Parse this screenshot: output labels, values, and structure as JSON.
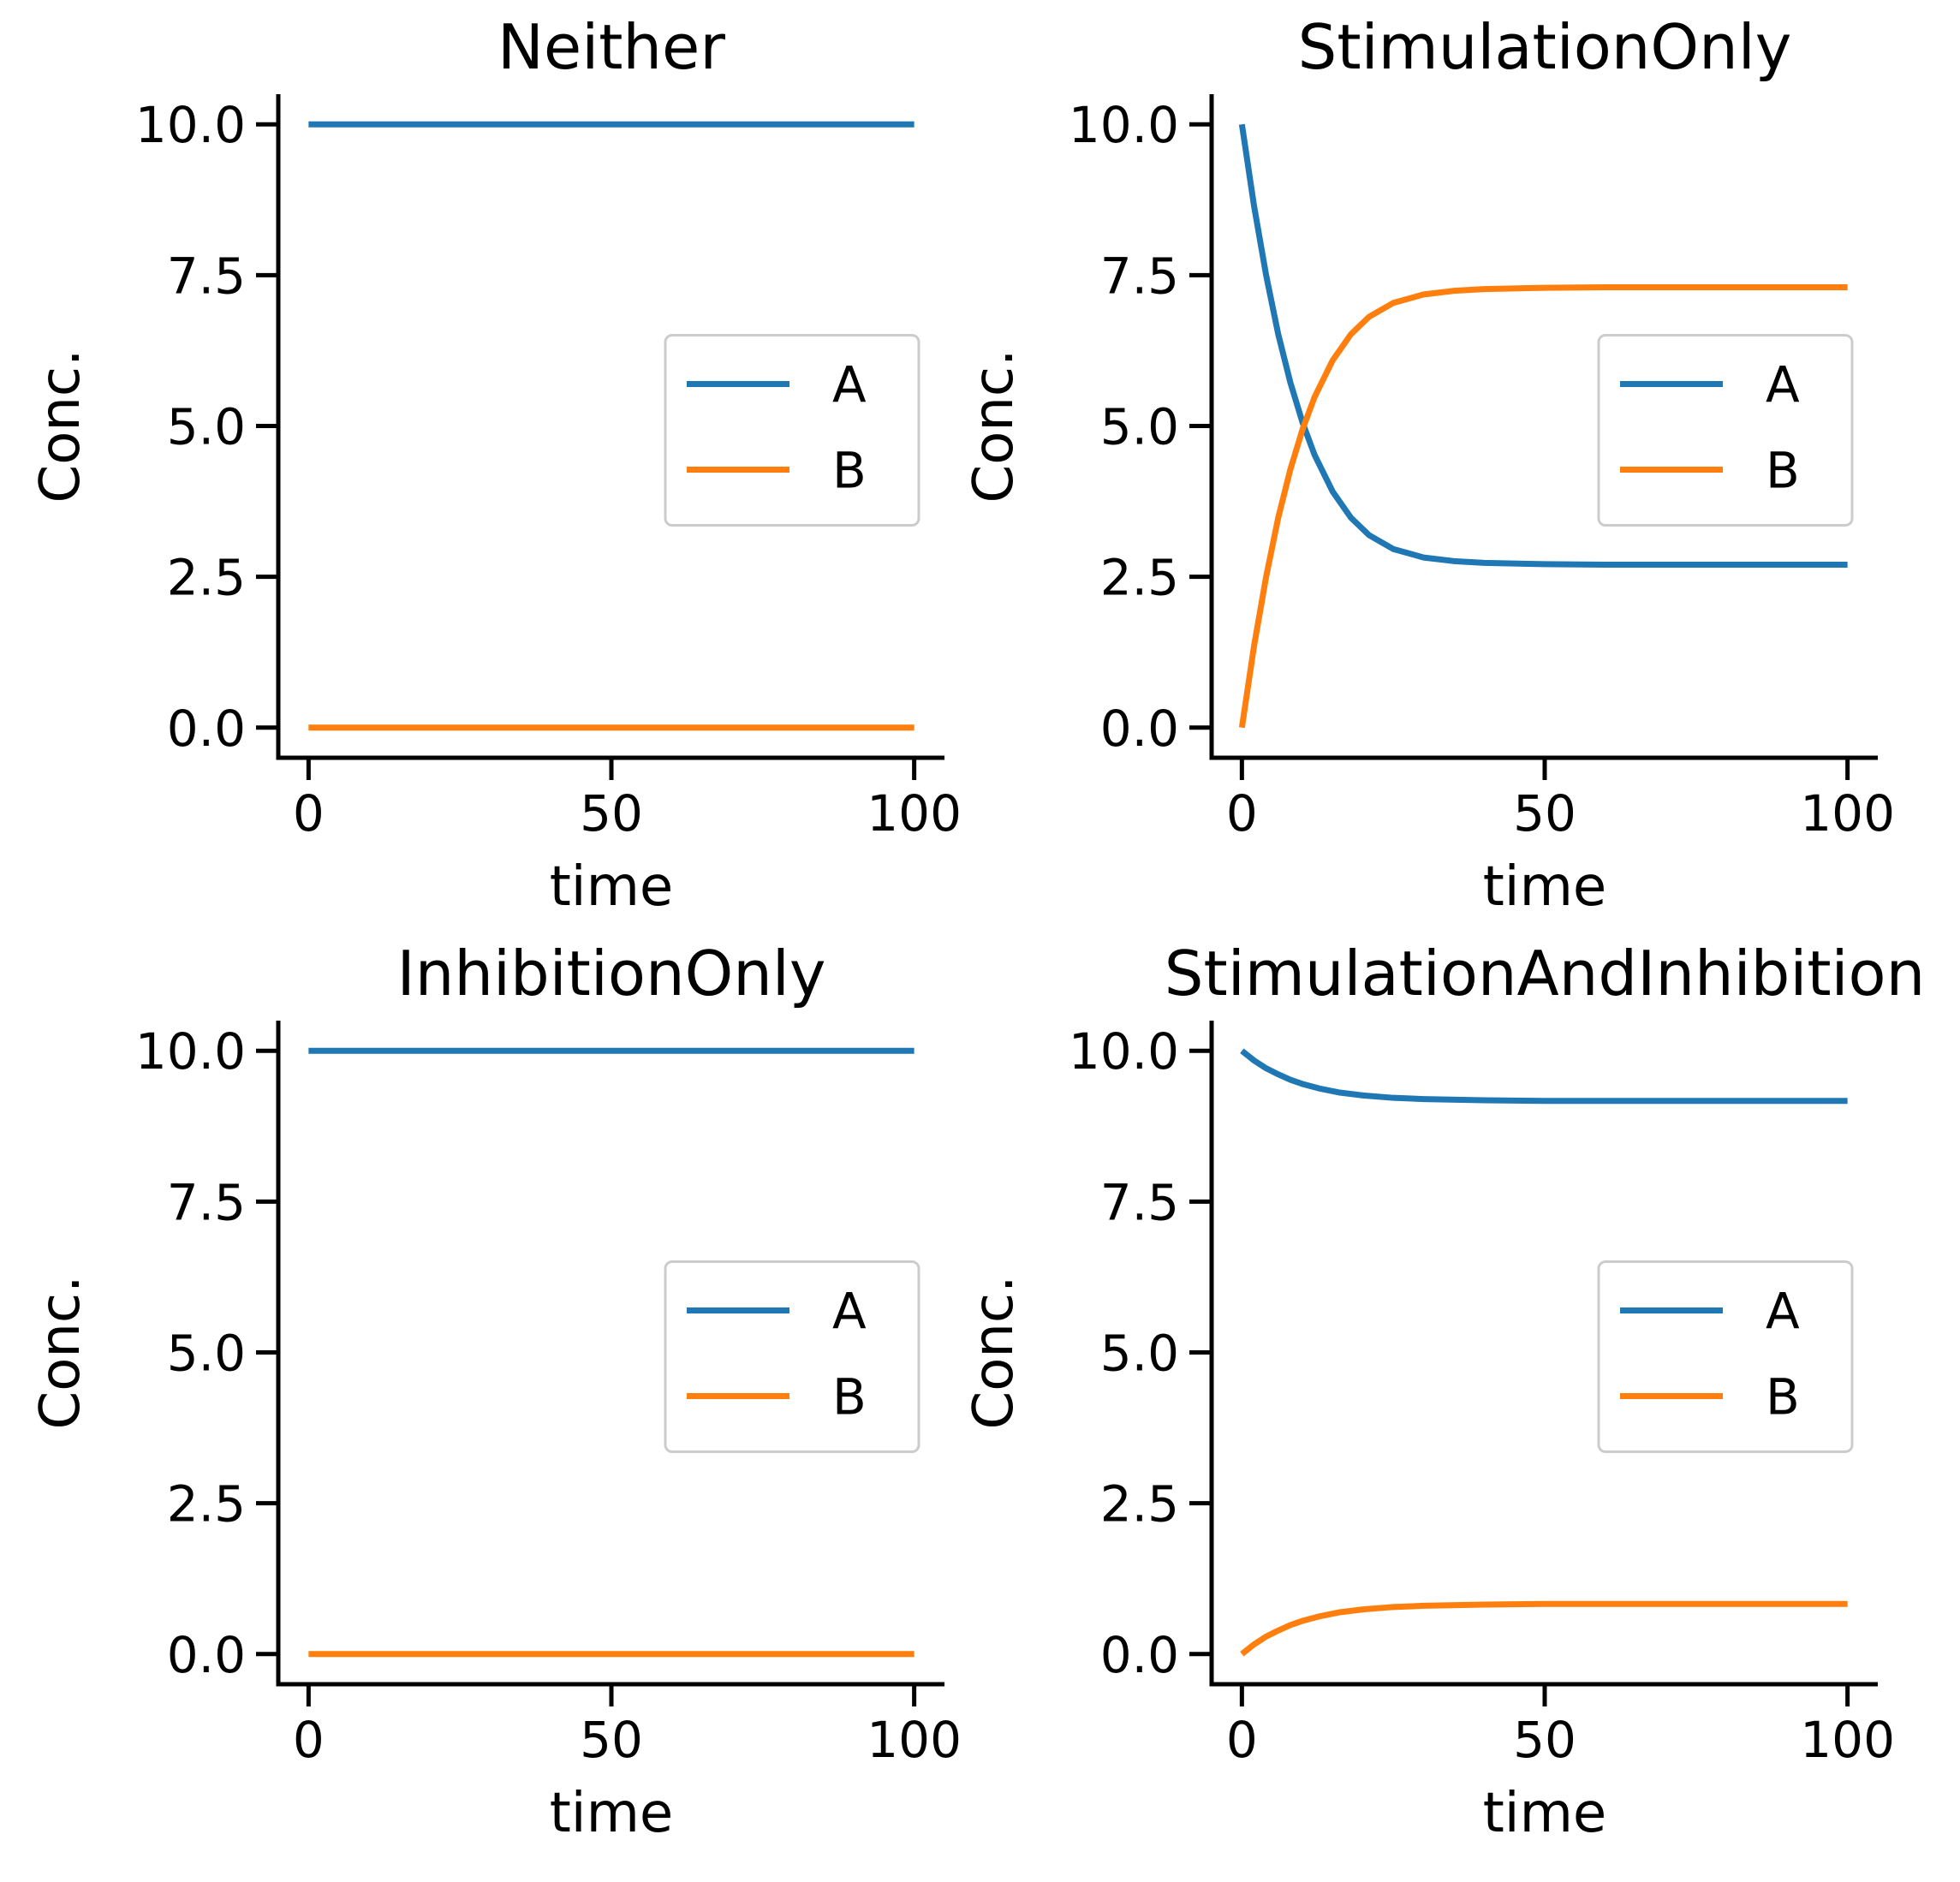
{
  "colors": {
    "A": "#1f77b4",
    "B": "#ff7f0e"
  },
  "chart_data": [
    {
      "type": "line",
      "title": "Neither",
      "xlabel": "time",
      "ylabel": "Conc.",
      "xlim": [
        -5,
        105
      ],
      "ylim": [
        -0.5,
        10.5
      ],
      "xticks": [
        0,
        50,
        100
      ],
      "yticks": [
        0.0,
        2.5,
        5.0,
        7.5,
        10.0
      ],
      "legend": "center-right",
      "grid": false,
      "series": [
        {
          "name": "A",
          "x": [
            0,
            25,
            50,
            75,
            100
          ],
          "y": [
            10.0,
            10.0,
            10.0,
            10.0,
            10.0
          ]
        },
        {
          "name": "B",
          "x": [
            0,
            25,
            50,
            75,
            100
          ],
          "y": [
            0.0,
            0.0,
            0.0,
            0.0,
            0.0
          ]
        }
      ]
    },
    {
      "type": "line",
      "title": "StimulationOnly",
      "xlabel": "time",
      "ylabel": "Conc.",
      "xlim": [
        -5,
        105
      ],
      "ylim": [
        -0.5,
        10.5
      ],
      "xticks": [
        0,
        50,
        100
      ],
      "yticks": [
        0.0,
        2.5,
        5.0,
        7.5,
        10.0
      ],
      "legend": "center-right",
      "grid": false,
      "series": [
        {
          "name": "A",
          "x": [
            0,
            2,
            4,
            6,
            8,
            10,
            12,
            15,
            18,
            21,
            25,
            30,
            35,
            40,
            50,
            60,
            70,
            80,
            90,
            100
          ],
          "y": [
            10.0,
            8.65,
            7.5,
            6.52,
            5.72,
            5.06,
            4.52,
            3.91,
            3.48,
            3.19,
            2.96,
            2.82,
            2.76,
            2.73,
            2.71,
            2.7,
            2.7,
            2.7,
            2.7,
            2.7
          ]
        },
        {
          "name": "B",
          "x": [
            0,
            2,
            4,
            6,
            8,
            10,
            12,
            15,
            18,
            21,
            25,
            30,
            35,
            40,
            50,
            60,
            70,
            80,
            90,
            100
          ],
          "y": [
            0.0,
            1.35,
            2.5,
            3.48,
            4.28,
            4.94,
            5.48,
            6.09,
            6.52,
            6.81,
            7.04,
            7.18,
            7.24,
            7.27,
            7.29,
            7.3,
            7.3,
            7.3,
            7.3,
            7.3
          ]
        }
      ]
    },
    {
      "type": "line",
      "title": "InhibitionOnly",
      "xlabel": "time",
      "ylabel": "Conc.",
      "xlim": [
        -5,
        105
      ],
      "ylim": [
        -0.5,
        10.5
      ],
      "xticks": [
        0,
        50,
        100
      ],
      "yticks": [
        0.0,
        2.5,
        5.0,
        7.5,
        10.0
      ],
      "legend": "center-right",
      "grid": false,
      "series": [
        {
          "name": "A",
          "x": [
            0,
            25,
            50,
            75,
            100
          ],
          "y": [
            10.0,
            10.0,
            10.0,
            10.0,
            10.0
          ]
        },
        {
          "name": "B",
          "x": [
            0,
            25,
            50,
            75,
            100
          ],
          "y": [
            0.0,
            0.0,
            0.0,
            0.0,
            0.0
          ]
        }
      ]
    },
    {
      "type": "line",
      "title": "StimulationAndInhibition",
      "xlabel": "time",
      "ylabel": "Conc.",
      "xlim": [
        -5,
        105
      ],
      "ylim": [
        -0.5,
        10.5
      ],
      "xticks": [
        0,
        50,
        100
      ],
      "yticks": [
        0.0,
        2.5,
        5.0,
        7.5,
        10.0
      ],
      "legend": "center-right",
      "grid": false,
      "series": [
        {
          "name": "A",
          "x": [
            0,
            2,
            4,
            6,
            8,
            10,
            13,
            16,
            20,
            25,
            30,
            40,
            50,
            60,
            70,
            80,
            90,
            100
          ],
          "y": [
            10.0,
            9.84,
            9.71,
            9.61,
            9.52,
            9.45,
            9.37,
            9.31,
            9.26,
            9.22,
            9.2,
            9.18,
            9.17,
            9.17,
            9.17,
            9.17,
            9.17,
            9.17
          ]
        },
        {
          "name": "B",
          "x": [
            0,
            2,
            4,
            6,
            8,
            10,
            13,
            16,
            20,
            25,
            30,
            40,
            50,
            60,
            70,
            80,
            90,
            100
          ],
          "y": [
            0.0,
            0.16,
            0.29,
            0.39,
            0.48,
            0.55,
            0.63,
            0.69,
            0.74,
            0.78,
            0.8,
            0.82,
            0.83,
            0.83,
            0.83,
            0.83,
            0.83,
            0.83
          ]
        }
      ]
    }
  ]
}
